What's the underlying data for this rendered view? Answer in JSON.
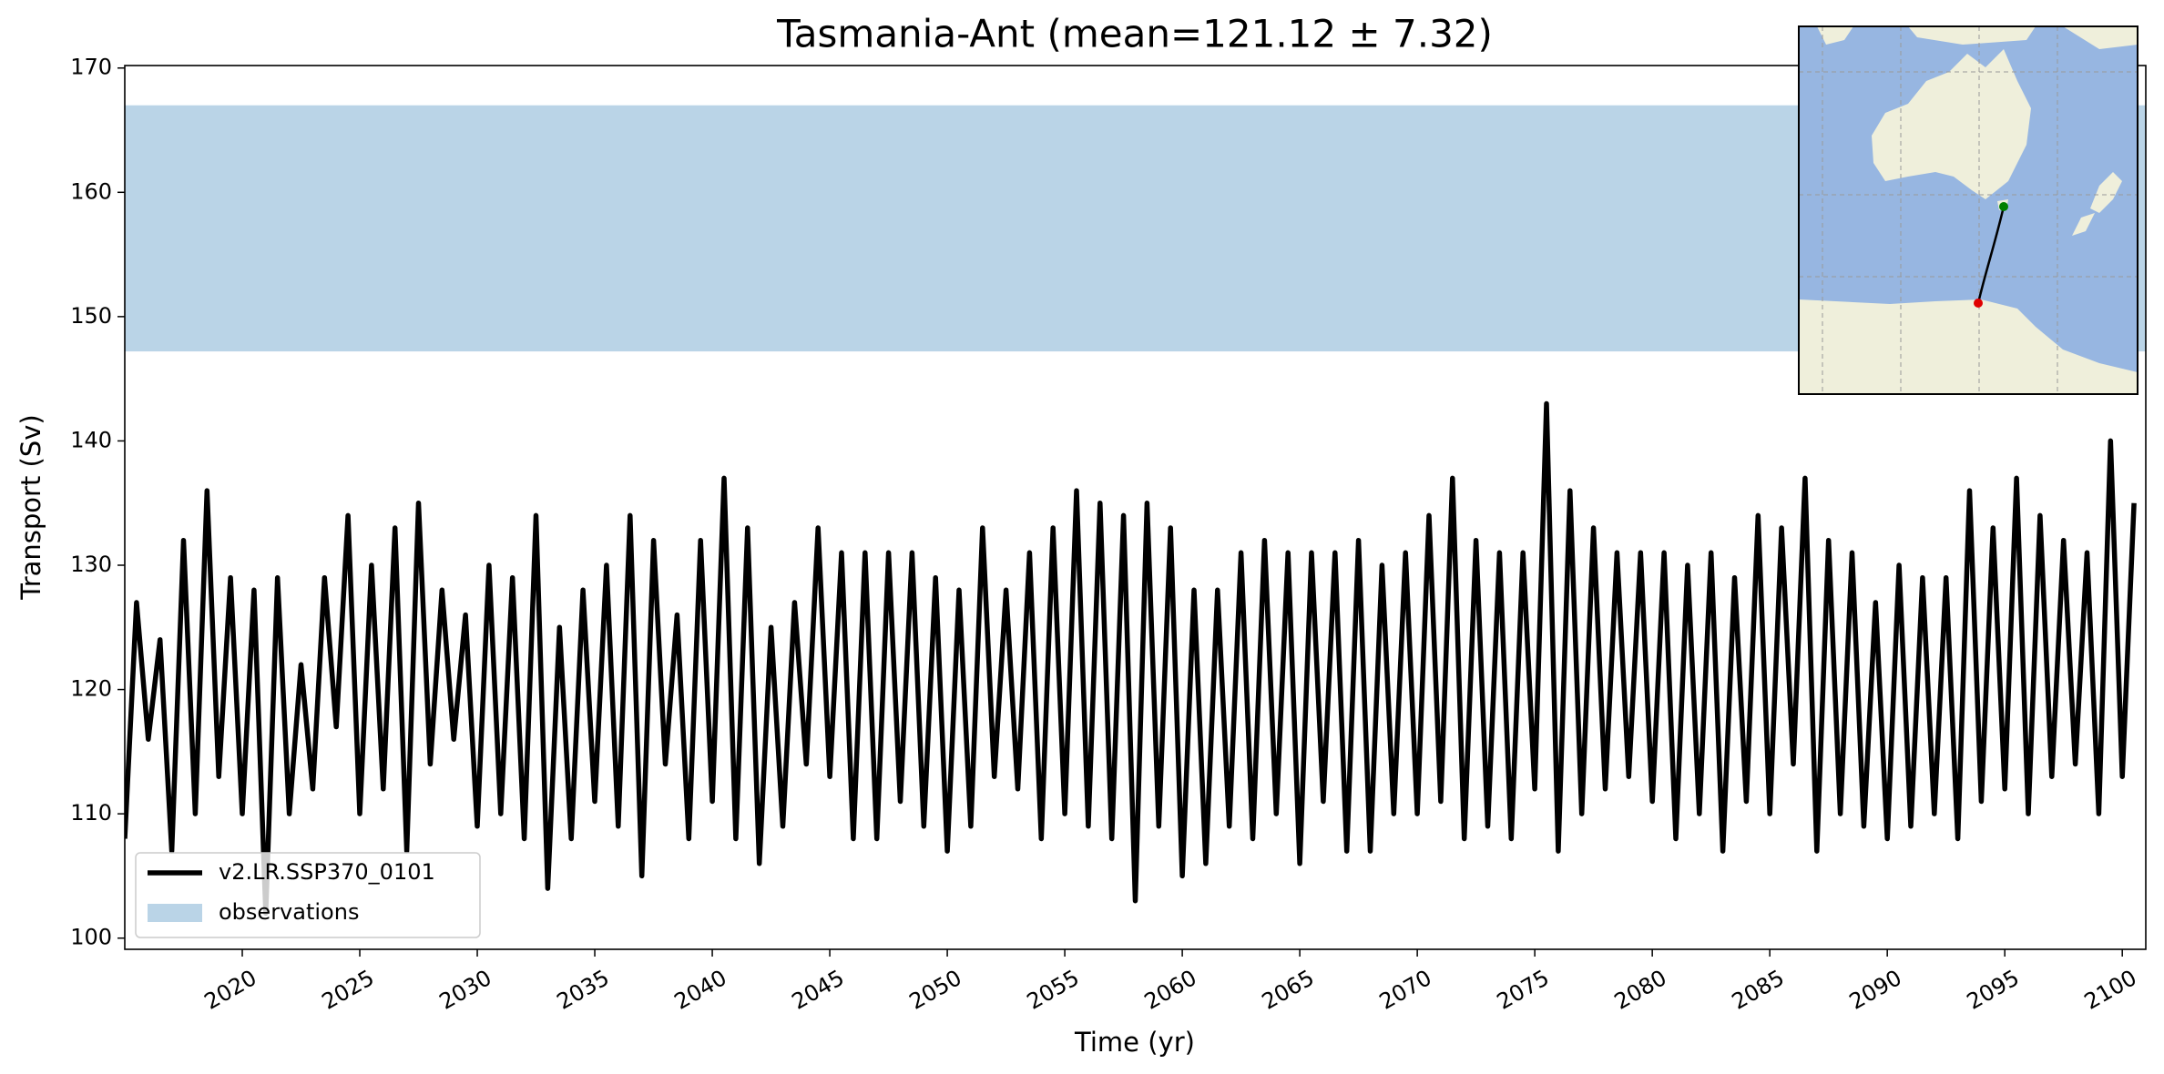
{
  "chart_data": {
    "type": "line",
    "title": "Tasmania-Ant (mean=121.12 ± 7.32)",
    "xlabel": "Time (yr)",
    "ylabel": "Transport (Sv)",
    "xlim": [
      2015,
      2101
    ],
    "ylim": [
      99.1,
      170.2
    ],
    "xticks": [
      2020,
      2025,
      2030,
      2035,
      2040,
      2045,
      2050,
      2055,
      2060,
      2065,
      2070,
      2075,
      2080,
      2085,
      2090,
      2095,
      2100
    ],
    "yticks": [
      100,
      110,
      120,
      130,
      140,
      150,
      160,
      170
    ],
    "legend": "lower left",
    "bands": [
      {
        "name": "observations",
        "color": "#bad4e7",
        "range": [
          147.2,
          167
        ]
      }
    ],
    "x": [
      2015,
      2015.5,
      2016,
      2016.5,
      2017,
      2017.5,
      2018,
      2018.5,
      2019,
      2019.5,
      2020,
      2020.5,
      2021,
      2021.5,
      2022,
      2022.5,
      2023,
      2023.5,
      2024,
      2024.5,
      2025,
      2025.5,
      2026,
      2026.5,
      2027,
      2027.5,
      2028,
      2028.5,
      2029,
      2029.5,
      2030,
      2030.5,
      2031,
      2031.5,
      2032,
      2032.5,
      2033,
      2033.5,
      2034,
      2034.5,
      2035,
      2035.5,
      2036,
      2036.5,
      2037,
      2037.5,
      2038,
      2038.5,
      2039,
      2039.5,
      2040,
      2040.5,
      2041,
      2041.5,
      2042,
      2042.5,
      2043,
      2043.5,
      2044,
      2044.5,
      2045,
      2045.5,
      2046,
      2046.5,
      2047,
      2047.5,
      2048,
      2048.5,
      2049,
      2049.5,
      2050,
      2050.5,
      2051,
      2051.5,
      2052,
      2052.5,
      2053,
      2053.5,
      2054,
      2054.5,
      2055,
      2055.5,
      2056,
      2056.5,
      2057,
      2057.5,
      2058,
      2058.5,
      2059,
      2059.5,
      2060,
      2060.5,
      2061,
      2061.5,
      2062,
      2062.5,
      2063,
      2063.5,
      2064,
      2064.5,
      2065,
      2065.5,
      2066,
      2066.5,
      2067,
      2067.5,
      2068,
      2068.5,
      2069,
      2069.5,
      2070,
      2070.5,
      2071,
      2071.5,
      2072,
      2072.5,
      2073,
      2073.5,
      2074,
      2074.5,
      2075,
      2075.5,
      2076,
      2076.5,
      2077,
      2077.5,
      2078,
      2078.5,
      2079,
      2079.5,
      2080,
      2080.5,
      2081,
      2081.5,
      2082,
      2082.5,
      2083,
      2083.5,
      2084,
      2084.5,
      2085,
      2085.5,
      2086,
      2086.5,
      2087,
      2087.5,
      2088,
      2088.5,
      2089,
      2089.5,
      2090,
      2090.5,
      2091,
      2091.5,
      2092,
      2092.5,
      2093,
      2093.5,
      2094,
      2094.5,
      2095,
      2095.5,
      2096,
      2096.5,
      2097,
      2097.5,
      2098,
      2098.5,
      2099,
      2099.5,
      2100,
      2100.5
    ],
    "series": [
      {
        "name": "v2.LR.SSP370_0101",
        "color": "#000000",
        "values": [
          108,
          127,
          116,
          124,
          107,
          132,
          110,
          136,
          113,
          129,
          110,
          128,
          102,
          129,
          110,
          122,
          112,
          129,
          117,
          134,
          110,
          130,
          112,
          133,
          107,
          135,
          114,
          128,
          116,
          126,
          109,
          130,
          110,
          129,
          108,
          134,
          104,
          125,
          108,
          128,
          111,
          130,
          109,
          134,
          105,
          132,
          114,
          126,
          108,
          132,
          111,
          137,
          108,
          133,
          106,
          125,
          109,
          127,
          114,
          133,
          113,
          131,
          108,
          131,
          108,
          131,
          111,
          131,
          109,
          129,
          107,
          128,
          109,
          133,
          113,
          128,
          112,
          131,
          108,
          133,
          110,
          136,
          109,
          135,
          108,
          134,
          103,
          135,
          109,
          133,
          105,
          128,
          106,
          128,
          109,
          131,
          108,
          132,
          110,
          131,
          106,
          131,
          111,
          131,
          107,
          132,
          107,
          130,
          110,
          131,
          110,
          134,
          111,
          137,
          108,
          132,
          109,
          131,
          108,
          131,
          112,
          143,
          107,
          136,
          110,
          133,
          112,
          131,
          113,
          131,
          111,
          131,
          108,
          130,
          110,
          131,
          107,
          129,
          111,
          134,
          110,
          133,
          114,
          137,
          107,
          132,
          110,
          131,
          109,
          127,
          108,
          130,
          109,
          129,
          110,
          129,
          108,
          136,
          111,
          133,
          112,
          137,
          110,
          134,
          113,
          132,
          114,
          131,
          110,
          140,
          113,
          135
        ]
      }
    ]
  }
}
